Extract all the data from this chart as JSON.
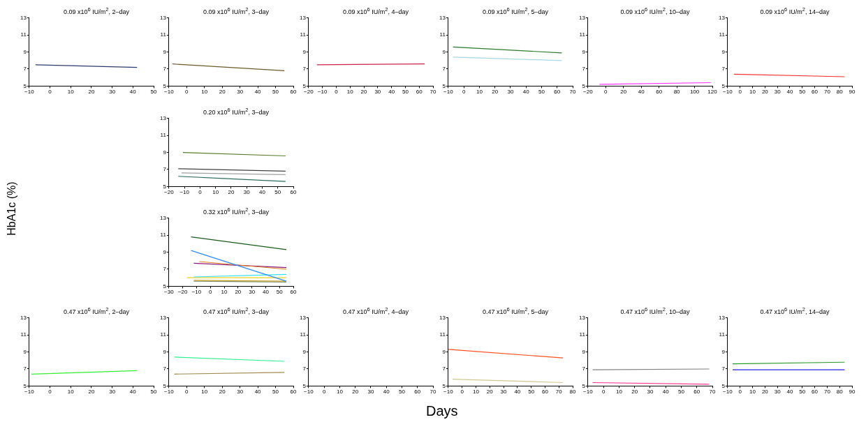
{
  "chart_data": [
    {
      "type": "line",
      "title": "0.09 x10$^{6}$ IU/m$^{2}$, 2–day",
      "xlim": [
        -10,
        50
      ],
      "xticks": [
        -10,
        0,
        10,
        20,
        30,
        40,
        50
      ],
      "ylim": [
        5,
        13
      ],
      "yticks": [
        5,
        7,
        9,
        11,
        13
      ],
      "grid": false,
      "legend": false,
      "marker": "none",
      "line_style": "solid",
      "series": [
        {
          "color": "#2a3a6a",
          "x": [
            -7,
            42
          ],
          "values": [
            7.5,
            7.2
          ]
        }
      ]
    },
    {
      "type": "line",
      "title": "0.09 x10$^{6}$ IU/m$^{2}$, 3–day",
      "xlim": [
        -10,
        60
      ],
      "xticks": [
        -10,
        0,
        10,
        20,
        30,
        40,
        50,
        60
      ],
      "ylim": [
        5,
        13
      ],
      "yticks": [
        5,
        7,
        9,
        11,
        13
      ],
      "grid": false,
      "legend": false,
      "marker": "none",
      "line_style": "solid",
      "series": [
        {
          "color": "#6b5a2a",
          "x": [
            -8,
            55
          ],
          "values": [
            7.6,
            6.8
          ]
        }
      ]
    },
    {
      "type": "line",
      "title": "0.09 x10$^{6}$ IU/m$^{2}$, 4–day",
      "xlim": [
        -20,
        70
      ],
      "xticks": [
        -20,
        -10,
        0,
        10,
        20,
        30,
        40,
        50,
        60,
        70
      ],
      "ylim": [
        5,
        13
      ],
      "yticks": [
        5,
        7,
        9,
        11,
        13
      ],
      "grid": false,
      "legend": false,
      "marker": "none",
      "line_style": "solid",
      "series": [
        {
          "color": "#d0204a",
          "x": [
            -14,
            64
          ],
          "values": [
            7.5,
            7.6
          ]
        }
      ]
    },
    {
      "type": "line",
      "title": "0.09 x10$^{6}$ IU/m$^{2}$, 5–day",
      "xlim": [
        -10,
        70
      ],
      "xticks": [
        -10,
        0,
        10,
        20,
        30,
        40,
        50,
        60,
        70
      ],
      "ylim": [
        5,
        13
      ],
      "yticks": [
        5,
        7,
        9,
        11,
        13
      ],
      "grid": false,
      "legend": false,
      "marker": "none",
      "line_style": "solid",
      "series": [
        {
          "color": "#2a7a2a",
          "x": [
            -7,
            63
          ],
          "values": [
            9.6,
            8.9
          ]
        },
        {
          "color": "#a8d8e8",
          "x": [
            -7,
            63
          ],
          "values": [
            8.4,
            8.0
          ]
        }
      ]
    },
    {
      "type": "line",
      "title": "0.09 x10$^{6}$ IU/m$^{2}$, 10–day",
      "xlim": [
        -20,
        120
      ],
      "xticks": [
        -20,
        0,
        20,
        40,
        60,
        80,
        100,
        120
      ],
      "ylim": [
        5,
        13
      ],
      "yticks": [
        5,
        7,
        9,
        11,
        13
      ],
      "grid": false,
      "legend": false,
      "marker": "none",
      "line_style": "solid",
      "series": [
        {
          "color": "#ff30ff",
          "x": [
            -7,
            118
          ],
          "values": [
            5.2,
            5.4
          ]
        }
      ]
    },
    {
      "type": "line",
      "title": "0.09 x10$^{6}$ IU/m$^{2}$, 14–day",
      "xlim": [
        -10,
        90
      ],
      "xticks": [
        -10,
        0,
        10,
        20,
        30,
        40,
        50,
        60,
        70,
        80,
        90
      ],
      "ylim": [
        5,
        13
      ],
      "yticks": [
        5,
        7,
        9,
        11,
        13
      ],
      "grid": false,
      "legend": false,
      "marker": "none",
      "line_style": "solid",
      "series": [
        {
          "color": "#ff3030",
          "x": [
            -5,
            84
          ],
          "values": [
            6.4,
            6.1
          ]
        }
      ]
    },
    {
      "type": "line",
      "title": "0.20 x10$^{6}$ IU/m$^{2}$, 3–day",
      "xlim": [
        -20,
        60
      ],
      "xticks": [
        -20,
        -10,
        0,
        10,
        20,
        30,
        40,
        50,
        60
      ],
      "ylim": [
        5,
        13
      ],
      "yticks": [
        5,
        7,
        9,
        11,
        13
      ],
      "grid": false,
      "legend": false,
      "marker": "none",
      "line_style": "solid",
      "series": [
        {
          "color": "#5a7a2a",
          "x": [
            -11,
            55
          ],
          "values": [
            9.0,
            8.6
          ]
        },
        {
          "color": "#404040",
          "x": [
            -14,
            55
          ],
          "values": [
            7.1,
            6.8
          ]
        },
        {
          "color": "#a0a0a0",
          "x": [
            -12,
            55
          ],
          "values": [
            6.6,
            6.4
          ]
        },
        {
          "color": "#2a6a5a",
          "x": [
            -14,
            55
          ],
          "values": [
            6.2,
            5.6
          ]
        }
      ]
    },
    {
      "type": "line",
      "title": "0.32 x10$^{6}$ IU/m$^{2}$, 3–day",
      "xlim": [
        -30,
        60
      ],
      "xticks": [
        -30,
        -20,
        -10,
        0,
        10,
        20,
        30,
        40,
        50,
        60
      ],
      "ylim": [
        5,
        13
      ],
      "yticks": [
        5,
        7,
        9,
        11,
        13
      ],
      "grid": false,
      "legend": false,
      "marker": "none",
      "line_style": "solid",
      "series": [
        {
          "color": "#1a5a1a",
          "x": [
            -14,
            55
          ],
          "values": [
            10.8,
            9.3
          ]
        },
        {
          "color": "#2a8aff",
          "x": [
            -14,
            55
          ],
          "values": [
            9.2,
            5.6
          ]
        },
        {
          "color": "#e08020",
          "x": [
            -8,
            55
          ],
          "values": [
            7.9,
            7.0
          ]
        },
        {
          "color": "#8a1a7a",
          "x": [
            -12,
            55
          ],
          "values": [
            7.7,
            7.2
          ]
        },
        {
          "color": "#30e0f0",
          "x": [
            -12,
            55
          ],
          "values": [
            6.1,
            6.4
          ]
        },
        {
          "color": "#f0d020",
          "x": [
            -17,
            55
          ],
          "values": [
            6.0,
            6.0
          ]
        },
        {
          "color": "#c8a020",
          "x": [
            -12,
            55
          ],
          "values": [
            5.7,
            5.6
          ]
        },
        {
          "color": "#809070",
          "x": [
            -12,
            55
          ],
          "values": [
            5.6,
            5.5
          ]
        }
      ]
    },
    {
      "type": "line",
      "title": "0.47 x10$^{6}$ IU/m$^{2}$, 2–day",
      "xlim": [
        -10,
        50
      ],
      "xticks": [
        -10,
        0,
        10,
        20,
        30,
        40,
        50
      ],
      "ylim": [
        5,
        13
      ],
      "yticks": [
        5,
        7,
        9,
        11,
        13
      ],
      "grid": false,
      "legend": false,
      "marker": "none",
      "line_style": "solid",
      "series": [
        {
          "color": "#30f030",
          "x": [
            -9,
            42
          ],
          "values": [
            6.4,
            6.8
          ]
        }
      ]
    },
    {
      "type": "line",
      "title": "0.47 x10$^{6}$ IU/m$^{2}$, 3–day",
      "xlim": [
        -10,
        60
      ],
      "xticks": [
        -10,
        0,
        10,
        20,
        30,
        40,
        50,
        60
      ],
      "ylim": [
        5,
        13
      ],
      "yticks": [
        5,
        7,
        9,
        11,
        13
      ],
      "grid": false,
      "legend": false,
      "marker": "none",
      "line_style": "solid",
      "series": [
        {
          "color": "#30f090",
          "x": [
            -7,
            55
          ],
          "values": [
            8.4,
            7.9
          ]
        },
        {
          "color": "#a08a50",
          "x": [
            -7,
            55
          ],
          "values": [
            6.4,
            6.6
          ]
        }
      ]
    },
    {
      "type": "line",
      "title": "0.47 x10$^{6}$ IU/m$^{2}$, 4–day",
      "xlim": [
        -10,
        70
      ],
      "xticks": [
        -10,
        0,
        10,
        20,
        30,
        40,
        50,
        60,
        70
      ],
      "ylim": [
        5,
        13
      ],
      "yticks": [
        5,
        7,
        9,
        11,
        13
      ],
      "grid": false,
      "legend": false
    },
    {
      "type": "line",
      "title": "0.47 x10$^{6}$ IU/m$^{2}$, 5–day",
      "xlim": [
        -10,
        80
      ],
      "xticks": [
        -10,
        0,
        10,
        20,
        30,
        40,
        50,
        60,
        70,
        80
      ],
      "ylim": [
        5,
        13
      ],
      "yticks": [
        5,
        7,
        9,
        11,
        13
      ],
      "grid": false,
      "legend": false,
      "marker": "none",
      "line_style": "solid",
      "series": [
        {
          "color": "#ff5020",
          "x": [
            -10,
            73
          ],
          "values": [
            9.3,
            8.3
          ]
        },
        {
          "color": "#d0c890",
          "x": [
            -7,
            73
          ],
          "values": [
            5.8,
            5.4
          ]
        }
      ]
    },
    {
      "type": "line",
      "title": "0.47 x10$^{6}$ IU/m$^{2}$, 10–day",
      "xlim": [
        -10,
        70
      ],
      "xticks": [
        -10,
        0,
        10,
        20,
        30,
        40,
        50,
        60,
        70
      ],
      "ylim": [
        5,
        13
      ],
      "yticks": [
        5,
        7,
        9,
        11,
        13
      ],
      "grid": false,
      "legend": false,
      "marker": "none",
      "line_style": "solid",
      "series": [
        {
          "color": "#808080",
          "x": [
            -7,
            68
          ],
          "values": [
            6.9,
            7.0
          ]
        },
        {
          "color": "#ff3090",
          "x": [
            -7,
            68
          ],
          "values": [
            5.4,
            5.2
          ]
        }
      ]
    },
    {
      "type": "line",
      "title": "0.47 x10$^{6}$ IU/m$^{2}$, 14–day",
      "xlim": [
        -10,
        90
      ],
      "xticks": [
        -10,
        0,
        10,
        20,
        30,
        40,
        50,
        60,
        70,
        80,
        90
      ],
      "ylim": [
        5,
        13
      ],
      "yticks": [
        5,
        7,
        9,
        11,
        13
      ],
      "grid": false,
      "legend": false,
      "marker": "none",
      "line_style": "solid",
      "series": [
        {
          "color": "#2a9a2a",
          "x": [
            -6,
            84
          ],
          "values": [
            7.6,
            7.8
          ]
        },
        {
          "color": "#2020e0",
          "x": [
            -6,
            84
          ],
          "values": [
            6.9,
            6.9
          ]
        }
      ]
    },
    {
      "type": "other",
      "xlabel": "Days",
      "ylabel": "HbA1c (%)"
    }
  ]
}
